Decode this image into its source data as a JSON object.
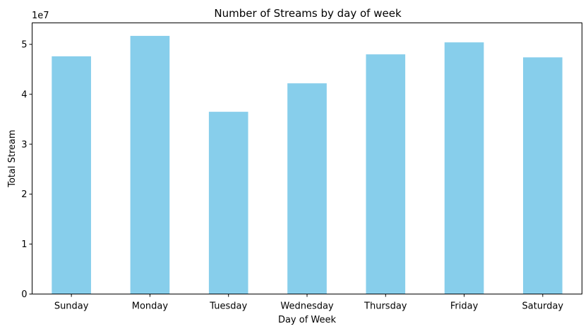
{
  "chart_data": {
    "type": "bar",
    "title": "Number of Streams by day of week",
    "xlabel": "Day of Week",
    "ylabel": "Total Stream",
    "categories": [
      "Sunday",
      "Monday",
      "Tuesday",
      "Wednesday",
      "Thursday",
      "Friday",
      "Saturday"
    ],
    "values": [
      47600000,
      51700000,
      36500000,
      42200000,
      48000000,
      50400000,
      47400000
    ],
    "ylim": [
      0,
      54300000
    ],
    "yticks": [
      0,
      10000000,
      20000000,
      30000000,
      40000000,
      50000000
    ],
    "ytick_labels": [
      "0",
      "1",
      "2",
      "3",
      "4",
      "5"
    ],
    "y_offset_label": "1e7",
    "bar_color": "#87ceeb",
    "grid": false,
    "legend": false
  }
}
